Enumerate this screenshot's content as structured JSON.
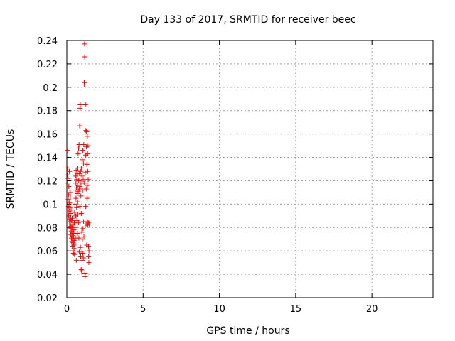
{
  "chart_data": {
    "type": "scatter",
    "title": "Day 133 of 2017, SRMTID for receiver beec",
    "xlabel": "GPS time / hours",
    "ylabel": "SRMTID / TECUs",
    "xlim": [
      0,
      24
    ],
    "ylim": [
      0.02,
      0.24
    ],
    "grid": true,
    "marker": "+",
    "series_color": "#ff0000",
    "x_ticks": [
      0,
      5,
      10,
      15,
      20
    ],
    "x_tick_labels": [
      "0",
      "5",
      "10",
      "15",
      "20"
    ],
    "y_ticks": [
      0.02,
      0.04,
      0.06,
      0.08,
      0.1,
      0.12,
      0.14,
      0.16,
      0.18,
      0.2,
      0.22,
      0.24
    ],
    "y_tick_labels": [
      "0.02",
      "0.04",
      "0.06",
      "0.08",
      "0.1",
      "0.12",
      "0.14",
      "0.16",
      "0.18",
      "0.2",
      "0.22",
      "0.24"
    ],
    "points": [
      [
        0.02,
        0.146
      ],
      [
        0.03,
        0.131
      ],
      [
        0.05,
        0.125
      ],
      [
        0.06,
        0.118
      ],
      [
        0.07,
        0.112
      ],
      [
        0.08,
        0.122
      ],
      [
        0.09,
        0.104
      ],
      [
        0.1,
        0.098
      ],
      [
        0.11,
        0.108
      ],
      [
        0.12,
        0.09
      ],
      [
        0.13,
        0.115
      ],
      [
        0.14,
        0.094
      ],
      [
        0.15,
        0.087
      ],
      [
        0.16,
        0.128
      ],
      [
        0.17,
        0.101
      ],
      [
        0.18,
        0.083
      ],
      [
        0.19,
        0.097
      ],
      [
        0.2,
        0.11
      ],
      [
        0.21,
        0.079
      ],
      [
        0.22,
        0.092
      ],
      [
        0.23,
        0.106
      ],
      [
        0.24,
        0.085
      ],
      [
        0.25,
        0.074
      ],
      [
        0.26,
        0.089
      ],
      [
        0.27,
        0.081
      ],
      [
        0.28,
        0.095
      ],
      [
        0.29,
        0.077
      ],
      [
        0.3,
        0.071
      ],
      [
        0.31,
        0.086
      ],
      [
        0.32,
        0.068
      ],
      [
        0.33,
        0.08
      ],
      [
        0.34,
        0.073
      ],
      [
        0.35,
        0.088
      ],
      [
        0.36,
        0.064
      ],
      [
        0.37,
        0.076
      ],
      [
        0.38,
        0.07
      ],
      [
        0.39,
        0.082
      ],
      [
        0.4,
        0.06
      ],
      [
        0.41,
        0.067
      ],
      [
        0.42,
        0.075
      ],
      [
        0.43,
        0.058
      ],
      [
        0.44,
        0.072
      ],
      [
        0.45,
        0.065
      ],
      [
        0.46,
        0.078
      ],
      [
        0.47,
        0.062
      ],
      [
        0.48,
        0.069
      ],
      [
        0.49,
        0.084
      ],
      [
        0.5,
        0.057
      ],
      [
        0.51,
        0.093
      ],
      [
        0.52,
        0.066
      ],
      [
        0.53,
        0.1
      ],
      [
        0.54,
        0.08
      ],
      [
        0.55,
        0.112
      ],
      [
        0.56,
        0.071
      ],
      [
        0.57,
        0.118
      ],
      [
        0.58,
        0.09
      ],
      [
        0.59,
        0.124
      ],
      [
        0.6,
        0.105
      ],
      [
        0.61,
        0.129
      ],
      [
        0.62,
        0.052
      ],
      [
        0.63,
        0.114
      ],
      [
        0.64,
        0.097
      ],
      [
        0.65,
        0.121
      ],
      [
        0.66,
        0.086
      ],
      [
        0.67,
        0.109
      ],
      [
        0.68,
        0.126
      ],
      [
        0.69,
        0.075
      ],
      [
        0.7,
        0.116
      ],
      [
        0.71,
        0.102
      ],
      [
        0.72,
        0.131
      ],
      [
        0.73,
        0.091
      ],
      [
        0.74,
        0.143
      ],
      [
        0.75,
        0.111
      ],
      [
        0.76,
        0.084
      ],
      [
        0.77,
        0.148
      ],
      [
        0.78,
        0.12
      ],
      [
        0.79,
        0.071
      ],
      [
        0.8,
        0.151
      ],
      [
        0.81,
        0.113
      ],
      [
        0.82,
        0.059
      ],
      [
        0.83,
        0.126
      ],
      [
        0.84,
        0.167
      ],
      [
        0.85,
        0.098
      ],
      [
        0.86,
        0.182
      ],
      [
        0.87,
        0.115
      ],
      [
        0.88,
        0.185
      ],
      [
        0.89,
        0.063
      ],
      [
        0.9,
        0.128
      ],
      [
        0.91,
        0.055
      ],
      [
        0.92,
        0.107
      ],
      [
        0.93,
        0.118
      ],
      [
        0.94,
        0.044
      ],
      [
        0.95,
        0.092
      ],
      [
        0.96,
        0.131
      ],
      [
        0.97,
        0.043
      ],
      [
        0.98,
        0.076
      ],
      [
        0.99,
        0.124
      ],
      [
        1.0,
        0.052
      ],
      [
        1.01,
        0.138
      ],
      [
        1.02,
        0.07
      ],
      [
        1.03,
        0.112
      ],
      [
        1.04,
        0.058
      ],
      [
        1.05,
        0.146
      ],
      [
        1.06,
        0.079
      ],
      [
        1.07,
        0.121
      ],
      [
        1.08,
        0.054
      ],
      [
        1.09,
        0.135
      ],
      [
        1.1,
        0.085
      ],
      [
        1.11,
        0.151
      ],
      [
        1.12,
        0.072
      ],
      [
        1.13,
        0.118
      ],
      [
        1.14,
        0.204
      ],
      [
        1.15,
        0.202
      ],
      [
        1.16,
        0.237
      ],
      [
        1.17,
        0.226
      ],
      [
        1.18,
        0.041
      ],
      [
        1.19,
        0.16
      ],
      [
        1.2,
        0.038
      ],
      [
        1.21,
        0.127
      ],
      [
        1.22,
        0.185
      ],
      [
        1.23,
        0.098
      ],
      [
        1.24,
        0.142
      ],
      [
        1.25,
        0.163
      ],
      [
        1.26,
        0.083
      ],
      [
        1.27,
        0.113
      ],
      [
        1.28,
        0.149
      ],
      [
        1.29,
        0.162
      ],
      [
        1.3,
        0.065
      ],
      [
        1.31,
        0.134
      ],
      [
        1.32,
        0.105
      ],
      [
        1.33,
        0.116
      ],
      [
        1.34,
        0.158
      ],
      [
        1.35,
        0.085
      ],
      [
        1.36,
        0.143
      ],
      [
        1.37,
        0.082
      ],
      [
        1.38,
        0.128
      ],
      [
        1.39,
        0.15
      ],
      [
        1.4,
        0.121
      ],
      [
        1.41,
        0.084
      ],
      [
        1.42,
        0.064
      ],
      [
        1.43,
        0.055
      ],
      [
        1.44,
        0.05
      ],
      [
        1.45,
        0.06
      ],
      [
        1.46,
        0.083
      ]
    ]
  }
}
